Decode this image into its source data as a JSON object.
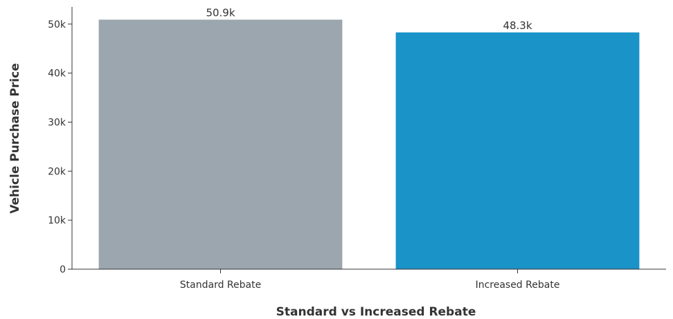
{
  "chart_data": {
    "type": "bar",
    "categories": [
      "Standard Rebate",
      "Increased Rebate"
    ],
    "values": [
      50900,
      48300
    ],
    "data_labels": [
      "50.9k",
      "48.3k"
    ],
    "colors": [
      "#9ba6ae",
      "#1a93c8"
    ],
    "title": "",
    "xlabel": "Standard vs Increased Rebate",
    "ylabel": "Vehicle Purchase Price",
    "ylim": [
      0,
      53500
    ],
    "yticks": [
      0,
      10000,
      20000,
      30000,
      40000,
      50000
    ],
    "ytick_labels": [
      "0",
      "10k",
      "20k",
      "30k",
      "40k",
      "50k"
    ],
    "grid": false,
    "legend": "none"
  }
}
